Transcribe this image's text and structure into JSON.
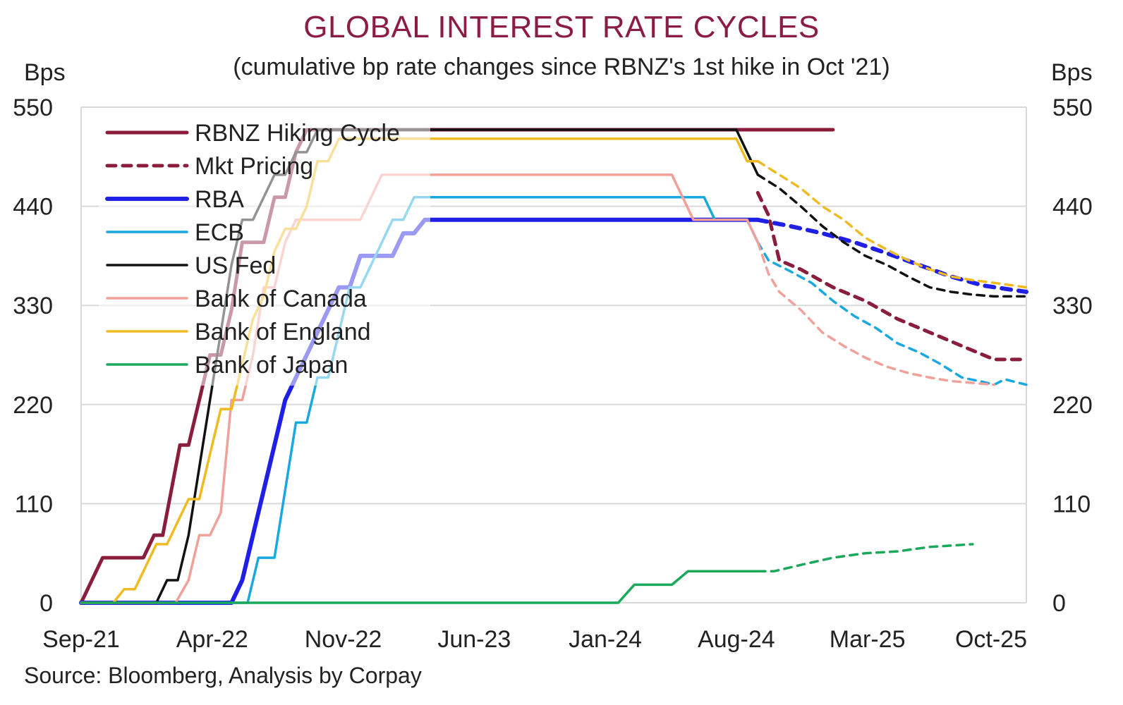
{
  "chart_data": {
    "type": "line",
    "title": "GLOBAL INTEREST RATE CYCLES",
    "subtitle": "(cumulative bp rate changes since RBNZ's 1st hike in Oct '21)",
    "ylabel_left": "Bps",
    "ylabel_right": "Bps",
    "source": "Source: Bloomberg, Analysis by Corpay",
    "x_ticks": [
      "Sep-21",
      "Apr-22",
      "Nov-22",
      "Jun-23",
      "Jan-24",
      "Aug-24",
      "Mar-25",
      "Oct-25"
    ],
    "x_range": [
      "Sep-21",
      "Oct-25"
    ],
    "ylim": [
      0,
      550
    ],
    "y_ticks": [
      0,
      110,
      220,
      330,
      440,
      550
    ],
    "grid": true,
    "legend_position": "top-left",
    "colors": {
      "title": "#8a1c46",
      "rbnz": "#8a1c3c",
      "rba": "#1f1fe6",
      "ecb": "#1aa8e0",
      "fed": "#111111",
      "boc": "#f2a19a",
      "boe": "#f0bb22",
      "boj": "#1aa85a",
      "grid": "#d9d9d9"
    },
    "legend": [
      {
        "label": "RBNZ Hiking Cycle",
        "color": "#8a1c3c",
        "dash": false,
        "width": 5
      },
      {
        "label": "Mkt Pricing",
        "color": "#8a1c3c",
        "dash": true,
        "width": 5
      },
      {
        "label": "RBA",
        "color": "#1f1fe6",
        "dash": false,
        "width": 6
      },
      {
        "label": "ECB",
        "color": "#1aa8e0",
        "dash": false,
        "width": 3.5
      },
      {
        "label": "US Fed",
        "color": "#111111",
        "dash": false,
        "width": 3.5
      },
      {
        "label": "Bank of Canada",
        "color": "#f2a19a",
        "dash": false,
        "width": 3.5
      },
      {
        "label": "Bank of England",
        "color": "#f0bb22",
        "dash": false,
        "width": 3.5
      },
      {
        "label": "Bank of Japan",
        "color": "#1aa85a",
        "dash": false,
        "width": 3.5
      }
    ],
    "series": [
      {
        "name": "RBNZ Hiking Cycle",
        "key": "rbnz",
        "width": 5,
        "dash": false,
        "x": [
          0,
          2,
          4,
          5.8,
          6.8,
          7.6,
          8.4,
          9.2,
          10,
          11,
          12,
          13,
          14,
          15,
          16,
          17,
          18,
          19,
          20,
          21,
          22,
          23,
          24,
          25,
          26,
          27,
          28,
          29,
          30,
          31,
          32,
          33,
          34,
          35,
          36,
          37,
          38,
          39,
          40,
          41,
          42,
          43,
          44,
          45,
          46,
          47,
          48,
          49,
          50,
          51,
          52,
          53,
          54,
          55,
          56,
          57,
          58,
          59,
          60,
          61,
          62,
          63,
          64,
          65,
          66,
          67,
          68,
          69,
          70
        ],
        "y": [
          0,
          50,
          50,
          50,
          75,
          75,
          125,
          175,
          175,
          225,
          275,
          275,
          325,
          400,
          400,
          400,
          450,
          450,
          500,
          525,
          525,
          525,
          525,
          525,
          525,
          525,
          525,
          525,
          525,
          525,
          525,
          525,
          525,
          525,
          525,
          525,
          525,
          525,
          525,
          525,
          525,
          525,
          525,
          525,
          525,
          525,
          525,
          525,
          525,
          525,
          525,
          525,
          525,
          525,
          525,
          525,
          525,
          525,
          525,
          525,
          525,
          525,
          525,
          525,
          525,
          525,
          525,
          525,
          525
        ]
      },
      {
        "name": "Mkt Pricing (RBNZ)",
        "key": "rbnz",
        "width": 5,
        "dash": true,
        "x": [
          63,
          64,
          65,
          67,
          70,
          73,
          76,
          79,
          82,
          85,
          88
        ],
        "y": [
          455,
          430,
          380,
          370,
          350,
          335,
          315,
          300,
          285,
          270,
          270
        ]
      },
      {
        "name": "RBA",
        "key": "rba",
        "width": 6,
        "dash": false,
        "x": [
          0,
          14,
          15,
          16,
          17,
          18,
          19,
          20,
          21,
          22,
          23,
          24,
          25,
          26,
          27,
          28,
          29,
          30,
          31,
          32,
          33,
          34,
          35,
          36,
          37,
          38,
          39,
          40,
          41,
          42,
          43,
          44,
          45,
          46,
          47,
          48,
          49,
          50,
          51,
          52,
          53,
          54,
          55,
          56,
          57,
          58,
          59,
          60,
          61,
          62,
          63
        ],
        "y": [
          0,
          0,
          25,
          75,
          125,
          175,
          225,
          250,
          275,
          300,
          325,
          350,
          350,
          385,
          385,
          385,
          385,
          410,
          410,
          425,
          425,
          425,
          425,
          425,
          425,
          425,
          425,
          425,
          425,
          425,
          425,
          425,
          425,
          425,
          425,
          425,
          425,
          425,
          425,
          425,
          425,
          425,
          425,
          425,
          425,
          425,
          425,
          425,
          425,
          425,
          425
        ]
      },
      {
        "name": "RBA Mkt Pricing",
        "key": "rba",
        "width": 6,
        "dash": true,
        "x": [
          63,
          66,
          69,
          72,
          75,
          78,
          81,
          84,
          88
        ],
        "y": [
          425,
          418,
          410,
          400,
          388,
          375,
          362,
          352,
          345
        ]
      },
      {
        "name": "ECB",
        "key": "ecb",
        "width": 3.5,
        "dash": false,
        "x": [
          0,
          15.5,
          16.5,
          18,
          19,
          20,
          21,
          22,
          23,
          24,
          25,
          26,
          27,
          28,
          29,
          30,
          31,
          32,
          33,
          34,
          35,
          36,
          37,
          38,
          39,
          40,
          41,
          42,
          43,
          44,
          45,
          46,
          47,
          48,
          49,
          50,
          51,
          52,
          53,
          54,
          55,
          56,
          57,
          58,
          59,
          60,
          61,
          62,
          63
        ],
        "y": [
          0,
          0,
          50,
          50,
          125,
          200,
          200,
          250,
          250,
          300,
          350,
          350,
          375,
          400,
          425,
          425,
          450,
          450,
          450,
          450,
          450,
          450,
          450,
          450,
          450,
          450,
          450,
          450,
          450,
          450,
          450,
          450,
          450,
          450,
          450,
          450,
          450,
          450,
          450,
          450,
          450,
          450,
          450,
          450,
          425,
          425,
          425,
          425,
          400
        ]
      },
      {
        "name": "ECB Mkt Pricing",
        "key": "ecb",
        "width": 3.5,
        "dash": true,
        "x": [
          63,
          64,
          66,
          68,
          70,
          72,
          74,
          76,
          78,
          80,
          82,
          84,
          85,
          86,
          88
        ],
        "y": [
          400,
          380,
          368,
          355,
          335,
          318,
          305,
          288,
          278,
          265,
          250,
          245,
          242,
          248,
          242
        ]
      },
      {
        "name": "US Fed",
        "key": "fed",
        "width": 3.5,
        "dash": false,
        "x": [
          0,
          7,
          8,
          9,
          10,
          11,
          12,
          13,
          14,
          15,
          16,
          17,
          18,
          19,
          20,
          21,
          22,
          23,
          24,
          25,
          26,
          27,
          28,
          29,
          30,
          31,
          32,
          33,
          34,
          35,
          36,
          37,
          38,
          39,
          40,
          41,
          42,
          43,
          44,
          45,
          46,
          47,
          48,
          49,
          50,
          51,
          52,
          53,
          54,
          55,
          56,
          57,
          58,
          59,
          60,
          61,
          62,
          63
        ],
        "y": [
          0,
          0,
          25,
          25,
          75,
          150,
          225,
          300,
          375,
          425,
          425,
          450,
          475,
          475,
          500,
          500,
          525,
          525,
          525,
          525,
          525,
          525,
          525,
          525,
          525,
          525,
          525,
          525,
          525,
          525,
          525,
          525,
          525,
          525,
          525,
          525,
          525,
          525,
          525,
          525,
          525,
          525,
          525,
          525,
          525,
          525,
          525,
          525,
          525,
          525,
          525,
          525,
          525,
          525,
          525,
          525,
          500,
          475
        ]
      },
      {
        "name": "Fed Mkt Pricing",
        "key": "fed",
        "width": 3.5,
        "dash": true,
        "x": [
          63,
          65,
          67,
          69,
          71,
          73,
          75,
          77,
          79,
          81,
          83,
          85,
          88
        ],
        "y": [
          475,
          460,
          440,
          418,
          400,
          385,
          375,
          362,
          350,
          345,
          342,
          340,
          340
        ]
      },
      {
        "name": "Bank of Canada",
        "key": "boc",
        "width": 3.5,
        "dash": false,
        "x": [
          0,
          8.8,
          10,
          11,
          12,
          13,
          14,
          15,
          16,
          17,
          18,
          19,
          20,
          21,
          22,
          23,
          24,
          25,
          26,
          27,
          28,
          29,
          30,
          31,
          32,
          33,
          34,
          35,
          36,
          37,
          38,
          39,
          40,
          41,
          42,
          43,
          44,
          45,
          46,
          47,
          48,
          49,
          50,
          51,
          52,
          53,
          54,
          55,
          56,
          57,
          58,
          59,
          60,
          61,
          62,
          63
        ],
        "y": [
          0,
          0,
          25,
          75,
          75,
          100,
          225,
          225,
          275,
          350,
          350,
          400,
          425,
          425,
          425,
          425,
          425,
          425,
          425,
          450,
          475,
          475,
          475,
          475,
          475,
          475,
          475,
          475,
          475,
          475,
          475,
          475,
          475,
          475,
          475,
          475,
          475,
          475,
          475,
          475,
          475,
          475,
          475,
          475,
          475,
          475,
          475,
          475,
          450,
          425,
          425,
          425,
          425,
          425,
          425,
          400
        ]
      },
      {
        "name": "BoC Mkt Pricing",
        "key": "boc",
        "width": 3.5,
        "dash": true,
        "x": [
          63,
          64,
          65,
          67,
          69,
          71,
          73,
          75,
          77,
          79,
          81,
          83,
          85
        ],
        "y": [
          400,
          365,
          345,
          325,
          300,
          285,
          272,
          262,
          255,
          250,
          246,
          244,
          242
        ]
      },
      {
        "name": "Bank of England",
        "key": "boe",
        "width": 3.5,
        "dash": false,
        "x": [
          0,
          3,
          4,
          5,
          6,
          7,
          8,
          9,
          10,
          11,
          12,
          13,
          14,
          15,
          16,
          17,
          18,
          19,
          20,
          21,
          22,
          23,
          24,
          25,
          26,
          27,
          28,
          29,
          30,
          31,
          32,
          33,
          34,
          35,
          36,
          37,
          38,
          39,
          40,
          41,
          42,
          43,
          44,
          45,
          46,
          47,
          48,
          49,
          50,
          51,
          52,
          53,
          54,
          55,
          56,
          57,
          58,
          59,
          60,
          61,
          62,
          63
        ],
        "y": [
          0,
          0,
          15,
          15,
          40,
          65,
          65,
          90,
          115,
          115,
          165,
          215,
          215,
          265,
          315,
          340,
          390,
          415,
          415,
          440,
          490,
          490,
          515,
          515,
          515,
          515,
          515,
          515,
          515,
          515,
          515,
          515,
          515,
          515,
          515,
          515,
          515,
          515,
          515,
          515,
          515,
          515,
          515,
          515,
          515,
          515,
          515,
          515,
          515,
          515,
          515,
          515,
          515,
          515,
          515,
          515,
          515,
          515,
          515,
          515,
          490,
          490
        ]
      },
      {
        "name": "BoE Mkt Pricing",
        "key": "boe",
        "width": 3.5,
        "dash": true,
        "x": [
          63,
          65,
          67,
          69,
          71,
          73,
          75,
          77,
          79,
          81,
          83,
          85,
          88
        ],
        "y": [
          490,
          475,
          460,
          440,
          425,
          405,
          392,
          380,
          370,
          362,
          358,
          355,
          350
        ]
      },
      {
        "name": "Bank of Japan",
        "key": "boj",
        "width": 3.5,
        "dash": false,
        "x": [
          0,
          50,
          51.5,
          55,
          56.5,
          58,
          63
        ],
        "y": [
          0,
          0,
          20,
          20,
          35,
          35,
          35
        ]
      },
      {
        "name": "BoJ Mkt Pricing",
        "key": "boj",
        "width": 3.5,
        "dash": true,
        "x": [
          63,
          64.5,
          67,
          70,
          73,
          76,
          79,
          83
        ],
        "y": [
          35,
          35,
          42,
          50,
          55,
          57,
          62,
          65
        ]
      }
    ]
  }
}
